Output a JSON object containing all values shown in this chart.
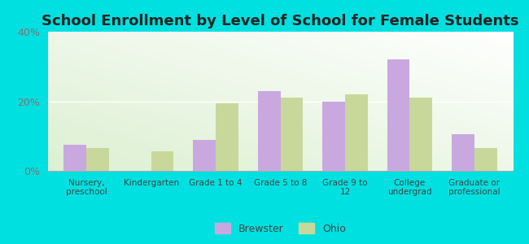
{
  "title": "School Enrollment by Level of School for Female Students",
  "categories": [
    "Nursery,\npreschool",
    "Kindergarten",
    "Grade 1 to 4",
    "Grade 5 to 8",
    "Grade 9 to\n12",
    "College\nundergrad",
    "Graduate or\nprofessional"
  ],
  "brewster": [
    7.5,
    0,
    9.0,
    23.0,
    20.0,
    32.0,
    10.5
  ],
  "ohio": [
    6.5,
    5.5,
    19.5,
    21.0,
    22.0,
    21.0,
    6.5
  ],
  "brewster_color": "#c9a8e0",
  "ohio_color": "#c8d89a",
  "background_color": "#00e0e0",
  "ylim": [
    0,
    40
  ],
  "yticks": [
    0,
    20,
    40
  ],
  "ytick_labels": [
    "0%",
    "20%",
    "40%"
  ],
  "title_fontsize": 13,
  "legend_labels": [
    "Brewster",
    "Ohio"
  ],
  "bar_width": 0.35
}
